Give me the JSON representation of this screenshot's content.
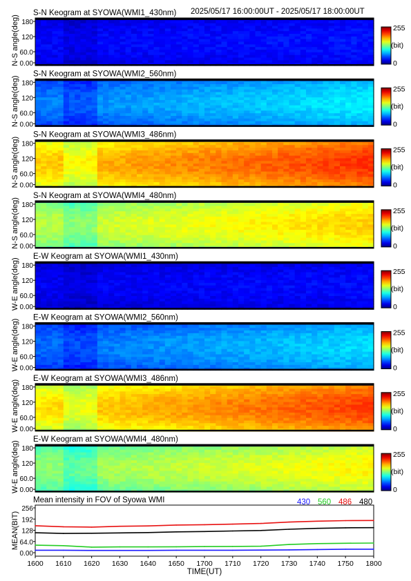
{
  "header": {
    "time_range": "2025/05/17 16:00:00UT - 2025/05/17 18:00:00UT"
  },
  "keogram_axis": {
    "y_ticks": [
      "180",
      "120",
      "60.0",
      "0.00"
    ],
    "colorbar_max": "255",
    "colorbar_unit": "(bit)",
    "colorbar_min": "0"
  },
  "panels": [
    {
      "title": "S-N Keogram at SYOWA(WMI1_430nm)",
      "ylabel": "N-S angle(deg)",
      "level": 0.1,
      "trend": 0.02,
      "band": 0.03
    },
    {
      "title": "S-N Keogram at SYOWA(WMI2_560nm)",
      "ylabel": "N-S angle(deg)",
      "level": 0.22,
      "trend": 0.12,
      "band": 0.06
    },
    {
      "title": "S-N Keogram at SYOWA(WMI3_486nm)",
      "ylabel": "N-S angle(deg)",
      "level": 0.64,
      "trend": 0.16,
      "band": 0.08
    },
    {
      "title": "S-N Keogram at SYOWA(WMI4_480nm)",
      "ylabel": "N-S angle(deg)",
      "level": 0.52,
      "trend": 0.12,
      "band": 0.07
    },
    {
      "title": "E-W Keogram at SYOWA(WMI1_430nm)",
      "ylabel": "W-E angle(deg)",
      "level": 0.09,
      "trend": 0.02,
      "band": 0.03
    },
    {
      "title": "E-W Keogram at SYOWA(WMI2_560nm)",
      "ylabel": "W-E angle(deg)",
      "level": 0.21,
      "trend": 0.12,
      "band": 0.05
    },
    {
      "title": "E-W Keogram at SYOWA(WMI3_486nm)",
      "ylabel": "W-E angle(deg)",
      "level": 0.62,
      "trend": 0.17,
      "band": 0.08
    },
    {
      "title": "E-W Keogram at SYOWA(WMI4_480nm)",
      "ylabel": "W-E angle(deg)",
      "level": 0.48,
      "trend": 0.12,
      "band": 0.07
    }
  ],
  "chart_data": {
    "type": "line",
    "title": "Mean intensity in FOV of Syowa WMI",
    "xlabel": "TIME(UT)",
    "ylabel": "MEAN(BIT)",
    "xlim": [
      1600,
      1800
    ],
    "ylim": [
      0,
      256
    ],
    "x_ticks": [
      "1600",
      "1610",
      "1620",
      "1630",
      "1640",
      "1650",
      "1700",
      "1710",
      "1720",
      "1730",
      "1740",
      "1750",
      "1800"
    ],
    "y_ticks": [
      "256",
      "192",
      "128",
      "64.0",
      "0.00"
    ],
    "x": [
      0,
      10,
      20,
      30,
      40,
      50,
      60,
      70,
      80,
      90,
      100,
      110,
      120
    ],
    "series": [
      {
        "name": "430",
        "color": "#1a1aff",
        "values": [
          14,
          14,
          13,
          13,
          13,
          14,
          14,
          14,
          15,
          16,
          18,
          20,
          20
        ]
      },
      {
        "name": "560",
        "color": "#22cc22",
        "values": [
          43,
          40,
          32,
          33,
          33,
          34,
          35,
          36,
          37,
          47,
          52,
          54,
          55
        ]
      },
      {
        "name": "486",
        "color": "#e81010",
        "values": [
          154,
          148,
          146,
          151,
          153,
          158,
          160,
          163,
          167,
          175,
          180,
          183,
          184
        ]
      },
      {
        "name": "480",
        "color": "#000000",
        "values": [
          114,
          110,
          111,
          113,
          115,
          119,
          121,
          124,
          127,
          134,
          139,
          142,
          143
        ]
      }
    ]
  }
}
